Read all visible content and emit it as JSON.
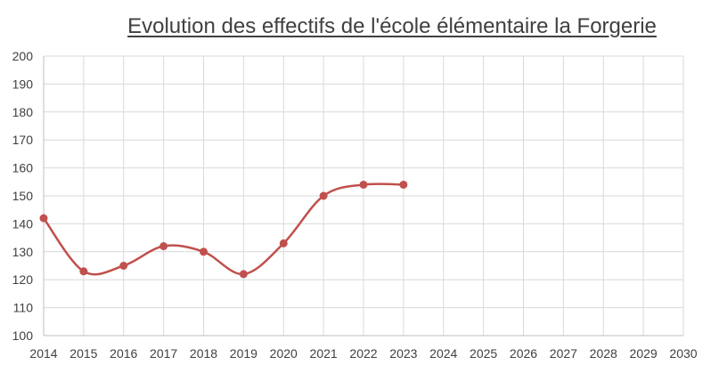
{
  "chart_data": {
    "type": "line",
    "title": "Evolution des effectifs de l'école élémentaire la Forgerie",
    "xlabel": "",
    "ylabel": "",
    "x_ticks": [
      "2014",
      "2015",
      "2016",
      "2017",
      "2018",
      "2019",
      "2020",
      "2021",
      "2022",
      "2023",
      "2024",
      "2025",
      "2026",
      "2027",
      "2028",
      "2029",
      "2030"
    ],
    "y_ticks": [
      "100",
      "110",
      "120",
      "130",
      "140",
      "150",
      "160",
      "170",
      "180",
      "190",
      "200"
    ],
    "xlim": [
      2014,
      2030
    ],
    "ylim": [
      100,
      200
    ],
    "grid": true,
    "legend": "none",
    "series": [
      {
        "color": "#c0504d",
        "smoothed": true,
        "x": [
          2014,
          2015,
          2016,
          2017,
          2018,
          2019,
          2020,
          2021,
          2022,
          2023
        ],
        "values": [
          142,
          123,
          125,
          132,
          130,
          122,
          133,
          150,
          154,
          154
        ]
      }
    ]
  }
}
